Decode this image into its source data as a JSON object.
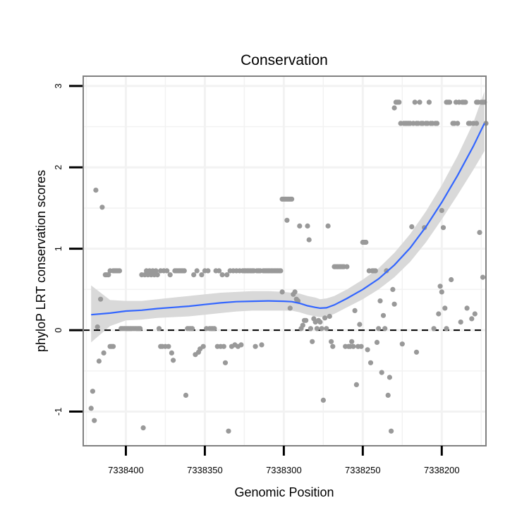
{
  "chart_data": {
    "type": "scatter",
    "title": "Conservation",
    "xlabel": "Genomic Position",
    "ylabel": "phyloP LRT conservation scores",
    "x_reversed": true,
    "xlim": [
      7338427,
      7338172
    ],
    "ylim": [
      -1.42,
      3.12
    ],
    "x_ticks": [
      7338400,
      7338350,
      7338300,
      7338250,
      7338200
    ],
    "x_tick_labels": [
      "7338400",
      "7338350",
      "7338300",
      "7338250",
      "7338200"
    ],
    "y_ticks": [
      -1,
      0,
      1,
      2,
      3
    ],
    "y_tick_labels": [
      "-1",
      "0",
      "1",
      "2",
      "3"
    ],
    "reference_line": {
      "y": 0,
      "style": "dashed",
      "color": "#000000"
    },
    "colors": {
      "points": "#999999",
      "smooth": "#3366ff",
      "band": "#d9d9d9",
      "panel_border": "#808080",
      "grid": "#f2f2f2"
    },
    "points": [
      [
        7338422,
        -0.96
      ],
      [
        7338421,
        -0.75
      ],
      [
        7338420,
        -1.11
      ],
      [
        7338419,
        1.72
      ],
      [
        7338418,
        0.04
      ],
      [
        7338417,
        -0.38
      ],
      [
        7338416,
        0.38
      ],
      [
        7338415,
        1.51
      ],
      [
        7338414,
        -0.28
      ],
      [
        7338413,
        0.68
      ],
      [
        7338412,
        0.68
      ],
      [
        7338411,
        0.68
      ],
      [
        7338410,
        -0.2
      ],
      [
        7338410,
        0.73
      ],
      [
        7338409,
        -0.2
      ],
      [
        7338408,
        0.73
      ],
      [
        7338408,
        -0.2
      ],
      [
        7338407,
        0.73
      ],
      [
        7338406,
        0.73
      ],
      [
        7338405,
        0.73
      ],
      [
        7338404,
        0.73
      ],
      [
        7338403,
        0.02
      ],
      [
        7338402,
        0.02
      ],
      [
        7338401,
        0.02
      ],
      [
        7338400,
        0.02
      ],
      [
        7338399,
        0.02
      ],
      [
        7338398,
        0.02
      ],
      [
        7338397,
        0.02
      ],
      [
        7338396,
        0.02
      ],
      [
        7338395,
        0.02
      ],
      [
        7338394,
        0.02
      ],
      [
        7338393,
        0.02
      ],
      [
        7338392,
        0.02
      ],
      [
        7338391,
        0.02
      ],
      [
        7338390,
        0.68
      ],
      [
        7338389,
        -1.2
      ],
      [
        7338388,
        0.68
      ],
      [
        7338387,
        0.73
      ],
      [
        7338386,
        0.68
      ],
      [
        7338385,
        0.73
      ],
      [
        7338384,
        0.68
      ],
      [
        7338383,
        0.73
      ],
      [
        7338382,
        0.68
      ],
      [
        7338381,
        0.73
      ],
      [
        7338380,
        0.68
      ],
      [
        7338379,
        0.02
      ],
      [
        7338378,
        -0.2
      ],
      [
        7338378,
        0.73
      ],
      [
        7338377,
        -0.2
      ],
      [
        7338376,
        0.73
      ],
      [
        7338375,
        -0.2
      ],
      [
        7338374,
        0.73
      ],
      [
        7338373,
        -0.2
      ],
      [
        7338372,
        0.68
      ],
      [
        7338371,
        -0.28
      ],
      [
        7338370,
        -0.37
      ],
      [
        7338369,
        0.73
      ],
      [
        7338368,
        0.73
      ],
      [
        7338367,
        0.73
      ],
      [
        7338366,
        0.73
      ],
      [
        7338365,
        0.73
      ],
      [
        7338364,
        0.73
      ],
      [
        7338363,
        0.73
      ],
      [
        7338362,
        -0.8
      ],
      [
        7338361,
        0.02
      ],
      [
        7338360,
        0.02
      ],
      [
        7338359,
        0.02
      ],
      [
        7338358,
        0.02
      ],
      [
        7338357,
        0.68
      ],
      [
        7338356,
        -0.3
      ],
      [
        7338355,
        0.73
      ],
      [
        7338354,
        -0.27
      ],
      [
        7338353,
        -0.23
      ],
      [
        7338352,
        0.68
      ],
      [
        7338351,
        -0.2
      ],
      [
        7338350,
        0.73
      ],
      [
        7338349,
        0.02
      ],
      [
        7338348,
        0.73
      ],
      [
        7338347,
        0.02
      ],
      [
        7338346,
        0.02
      ],
      [
        7338345,
        0.02
      ],
      [
        7338344,
        0.02
      ],
      [
        7338343,
        0.73
      ],
      [
        7338342,
        -0.2
      ],
      [
        7338341,
        0.73
      ],
      [
        7338340,
        -0.2
      ],
      [
        7338339,
        0.68
      ],
      [
        7338338,
        -0.2
      ],
      [
        7338337,
        -0.4
      ],
      [
        7338336,
        0.68
      ],
      [
        7338335,
        -1.24
      ],
      [
        7338334,
        0.73
      ],
      [
        7338333,
        -0.2
      ],
      [
        7338332,
        0.73
      ],
      [
        7338331,
        -0.18
      ],
      [
        7338330,
        0.73
      ],
      [
        7338329,
        -0.2
      ],
      [
        7338328,
        0.73
      ],
      [
        7338327,
        -0.18
      ],
      [
        7338326,
        0.73
      ],
      [
        7338325,
        0.73
      ],
      [
        7338324,
        0.73
      ],
      [
        7338323,
        0.73
      ],
      [
        7338322,
        0.73
      ],
      [
        7338321,
        0.73
      ],
      [
        7338320,
        0.73
      ],
      [
        7338319,
        0.73
      ],
      [
        7338318,
        -0.2
      ],
      [
        7338317,
        0.73
      ],
      [
        7338316,
        0.73
      ],
      [
        7338315,
        0.73
      ],
      [
        7338314,
        -0.18
      ],
      [
        7338313,
        0.73
      ],
      [
        7338312,
        0.73
      ],
      [
        7338311,
        0.73
      ],
      [
        7338310,
        0.73
      ],
      [
        7338309,
        0.73
      ],
      [
        7338308,
        0.73
      ],
      [
        7338307,
        0.73
      ],
      [
        7338306,
        0.73
      ],
      [
        7338305,
        0.73
      ],
      [
        7338304,
        0.73
      ],
      [
        7338303,
        0.73
      ],
      [
        7338302,
        0.73
      ],
      [
        7338301,
        0.47
      ],
      [
        7338301,
        1.61
      ],
      [
        7338300,
        1.61
      ],
      [
        7338299,
        1.61
      ],
      [
        7338298,
        1.61
      ],
      [
        7338297,
        1.61
      ],
      [
        7338296,
        1.61
      ],
      [
        7338295,
        1.61
      ],
      [
        7338298,
        1.35
      ],
      [
        7338296,
        0.27
      ],
      [
        7338294,
        0.44
      ],
      [
        7338293,
        0.47
      ],
      [
        7338292,
        0.38
      ],
      [
        7338291,
        0.36
      ],
      [
        7338290,
        1.28
      ],
      [
        7338289,
        0.02
      ],
      [
        7338288,
        0.06
      ],
      [
        7338287,
        0.12
      ],
      [
        7338286,
        0.12
      ],
      [
        7338285,
        1.28
      ],
      [
        7338284,
        1.11
      ],
      [
        7338283,
        0.02
      ],
      [
        7338282,
        -0.14
      ],
      [
        7338281,
        0.14
      ],
      [
        7338280,
        0.1
      ],
      [
        7338279,
        0.02
      ],
      [
        7338278,
        0.12
      ],
      [
        7338277,
        0.1
      ],
      [
        7338276,
        0.02
      ],
      [
        7338275,
        -0.86
      ],
      [
        7338274,
        0.15
      ],
      [
        7338273,
        0.02
      ],
      [
        7338272,
        1.28
      ],
      [
        7338271,
        0.17
      ],
      [
        7338270,
        -0.14
      ],
      [
        7338269,
        -0.2
      ],
      [
        7338268,
        0.78
      ],
      [
        7338267,
        0.78
      ],
      [
        7338266,
        0.78
      ],
      [
        7338265,
        0.78
      ],
      [
        7338264,
        0.78
      ],
      [
        7338263,
        0.78
      ],
      [
        7338262,
        0.78
      ],
      [
        7338261,
        -0.2
      ],
      [
        7338260,
        0.78
      ],
      [
        7338259,
        -0.2
      ],
      [
        7338258,
        -0.2
      ],
      [
        7338257,
        -0.14
      ],
      [
        7338256,
        -0.2
      ],
      [
        7338255,
        0.24
      ],
      [
        7338254,
        -0.67
      ],
      [
        7338253,
        -0.2
      ],
      [
        7338252,
        0.07
      ],
      [
        7338251,
        -0.2
      ],
      [
        7338250,
        1.08
      ],
      [
        7338249,
        1.08
      ],
      [
        7338248,
        1.08
      ],
      [
        7338247,
        -0.24
      ],
      [
        7338246,
        0.73
      ],
      [
        7338245,
        -0.4
      ],
      [
        7338244,
        0.73
      ],
      [
        7338243,
        0.73
      ],
      [
        7338242,
        0.73
      ],
      [
        7338241,
        -0.15
      ],
      [
        7338240,
        0.02
      ],
      [
        7338239,
        0.36
      ],
      [
        7338238,
        -0.52
      ],
      [
        7338237,
        0.18
      ],
      [
        7338236,
        0.02
      ],
      [
        7338235,
        0.73
      ],
      [
        7338234,
        -0.8
      ],
      [
        7338233,
        -0.58
      ],
      [
        7338232,
        -1.24
      ],
      [
        7338231,
        0.5
      ],
      [
        7338230,
        0.32
      ],
      [
        7338230,
        2.73
      ],
      [
        7338229,
        2.8
      ],
      [
        7338228,
        2.8
      ],
      [
        7338227,
        2.8
      ],
      [
        7338226,
        2.54
      ],
      [
        7338225,
        -0.17
      ],
      [
        7338224,
        2.54
      ],
      [
        7338223,
        2.54
      ],
      [
        7338222,
        2.54
      ],
      [
        7338221,
        2.54
      ],
      [
        7338220,
        2.54
      ],
      [
        7338219,
        1.27
      ],
      [
        7338218,
        2.54
      ],
      [
        7338217,
        2.8
      ],
      [
        7338216,
        -0.27
      ],
      [
        7338216,
        2.54
      ],
      [
        7338215,
        2.54
      ],
      [
        7338214,
        2.8
      ],
      [
        7338213,
        2.54
      ],
      [
        7338212,
        2.54
      ],
      [
        7338211,
        1.26
      ],
      [
        7338210,
        2.54
      ],
      [
        7338209,
        2.54
      ],
      [
        7338208,
        2.8
      ],
      [
        7338207,
        2.54
      ],
      [
        7338206,
        2.54
      ],
      [
        7338205,
        0.02
      ],
      [
        7338204,
        2.54
      ],
      [
        7338203,
        2.54
      ],
      [
        7338202,
        0.2
      ],
      [
        7338201,
        0.54
      ],
      [
        7338200,
        0.47
      ],
      [
        7338200,
        1.47
      ],
      [
        7338199,
        1.26
      ],
      [
        7338198,
        0.27
      ],
      [
        7338197,
        0.02
      ],
      [
        7338197,
        2.8
      ],
      [
        7338196,
        2.8
      ],
      [
        7338195,
        2.8
      ],
      [
        7338194,
        0.62
      ],
      [
        7338193,
        2.54
      ],
      [
        7338192,
        2.54
      ],
      [
        7338191,
        2.8
      ],
      [
        7338190,
        2.54
      ],
      [
        7338189,
        2.8
      ],
      [
        7338188,
        0.1
      ],
      [
        7338187,
        2.8
      ],
      [
        7338186,
        2.8
      ],
      [
        7338185,
        2.8
      ],
      [
        7338184,
        0.27
      ],
      [
        7338183,
        2.54
      ],
      [
        7338182,
        2.54
      ],
      [
        7338181,
        0.14
      ],
      [
        7338180,
        2.54
      ],
      [
        7338179,
        0.2
      ],
      [
        7338178,
        2.54
      ],
      [
        7338178,
        2.8
      ],
      [
        7338177,
        2.8
      ],
      [
        7338176,
        1.2
      ],
      [
        7338175,
        2.8
      ],
      [
        7338174,
        0.65
      ],
      [
        7338174,
        2.8
      ],
      [
        7338173,
        2.8
      ],
      [
        7338172,
        2.54
      ]
    ],
    "smooth": [
      [
        7338422,
        0.19
      ],
      [
        7338410,
        0.21
      ],
      [
        7338400,
        0.235
      ],
      [
        7338390,
        0.245
      ],
      [
        7338380,
        0.265
      ],
      [
        7338370,
        0.28
      ],
      [
        7338360,
        0.295
      ],
      [
        7338350,
        0.315
      ],
      [
        7338340,
        0.335
      ],
      [
        7338330,
        0.35
      ],
      [
        7338320,
        0.355
      ],
      [
        7338310,
        0.36
      ],
      [
        7338300,
        0.355
      ],
      [
        7338295,
        0.35
      ],
      [
        7338290,
        0.33
      ],
      [
        7338285,
        0.3
      ],
      [
        7338280,
        0.28
      ],
      [
        7338277,
        0.27
      ],
      [
        7338273,
        0.275
      ],
      [
        7338268,
        0.31
      ],
      [
        7338260,
        0.39
      ],
      [
        7338250,
        0.5
      ],
      [
        7338240,
        0.63
      ],
      [
        7338230,
        0.8
      ],
      [
        7338220,
        1.01
      ],
      [
        7338210,
        1.27
      ],
      [
        7338200,
        1.57
      ],
      [
        7338190,
        1.9
      ],
      [
        7338180,
        2.26
      ],
      [
        7338173,
        2.54
      ]
    ],
    "band": [
      [
        7338422,
        -0.15,
        0.55
      ],
      [
        7338410,
        0.05,
        0.37
      ],
      [
        7338400,
        0.12,
        0.36
      ],
      [
        7338390,
        0.13,
        0.36
      ],
      [
        7338380,
        0.15,
        0.38
      ],
      [
        7338370,
        0.16,
        0.4
      ],
      [
        7338360,
        0.17,
        0.42
      ],
      [
        7338350,
        0.19,
        0.44
      ],
      [
        7338340,
        0.21,
        0.46
      ],
      [
        7338330,
        0.23,
        0.47
      ],
      [
        7338320,
        0.24,
        0.48
      ],
      [
        7338310,
        0.24,
        0.48
      ],
      [
        7338300,
        0.24,
        0.47
      ],
      [
        7338295,
        0.24,
        0.46
      ],
      [
        7338290,
        0.22,
        0.45
      ],
      [
        7338285,
        0.19,
        0.42
      ],
      [
        7338280,
        0.17,
        0.4
      ],
      [
        7338277,
        0.16,
        0.38
      ],
      [
        7338273,
        0.16,
        0.39
      ],
      [
        7338268,
        0.2,
        0.42
      ],
      [
        7338260,
        0.28,
        0.5
      ],
      [
        7338250,
        0.38,
        0.62
      ],
      [
        7338240,
        0.5,
        0.76
      ],
      [
        7338230,
        0.65,
        0.95
      ],
      [
        7338220,
        0.84,
        1.18
      ],
      [
        7338210,
        1.08,
        1.46
      ],
      [
        7338200,
        1.36,
        1.78
      ],
      [
        7338190,
        1.66,
        2.14
      ],
      [
        7338180,
        1.97,
        2.55
      ],
      [
        7338173,
        2.2,
        2.93
      ]
    ]
  }
}
